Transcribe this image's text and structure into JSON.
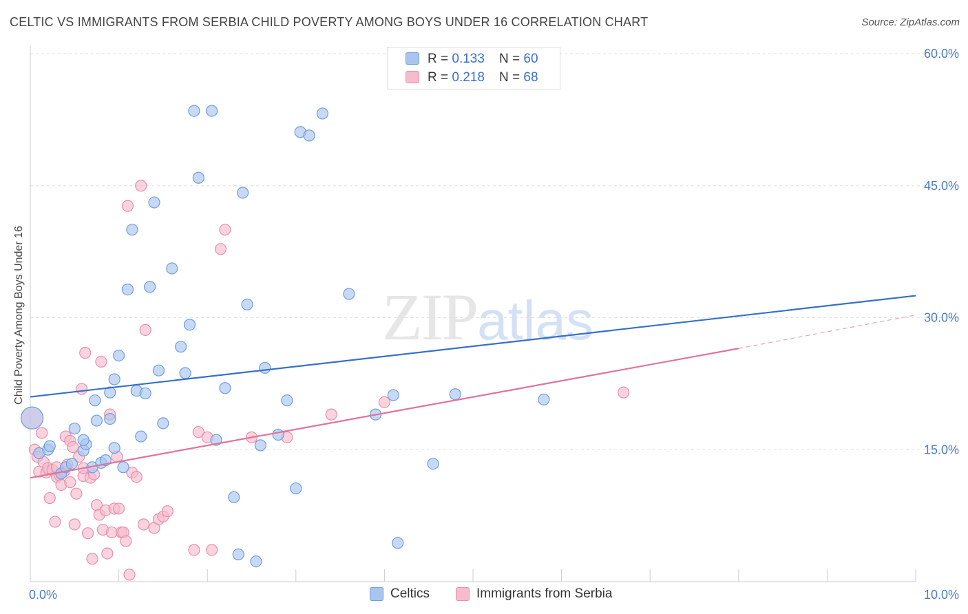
{
  "title": "CELTIC VS IMMIGRANTS FROM SERBIA CHILD POVERTY AMONG BOYS UNDER 16 CORRELATION CHART",
  "source": "Source: ZipAtlas.com",
  "watermark": {
    "zip": "ZIP",
    "atlas": "atlas"
  },
  "legend_top": [
    {
      "r_label": "R = ",
      "r_value": "0.133",
      "n_label": "N = ",
      "n_value": "60"
    },
    {
      "r_label": "R = ",
      "r_value": "0.218",
      "n_label": "N = ",
      "n_value": "68"
    }
  ],
  "bottom_legend": [
    {
      "label": "Celtics"
    },
    {
      "label": "Immigrants from Serbia"
    }
  ],
  "colors": {
    "celtics_fill": "#a9c5ee",
    "celtics_stroke": "#6f9fe0",
    "celtics_line": "#3570c9",
    "serbia_fill": "#f6bccd",
    "serbia_stroke": "#e98fab",
    "serbia_line": "#e0729b",
    "grid": "#e0e0e0",
    "tick_text": "#4a7cc9"
  },
  "chart_data": {
    "type": "scatter",
    "title": "CELTIC VS IMMIGRANTS FROM SERBIA CHILD POVERTY AMONG BOYS UNDER 16 CORRELATION CHART",
    "xlabel": "",
    "ylabel": "Child Poverty Among Boys Under 16",
    "xlim": [
      0,
      10
    ],
    "ylim": [
      0,
      60
    ],
    "x_tick_labels": [
      {
        "value": 0,
        "label": "0.0%"
      },
      {
        "value": 10,
        "label": "10.0%"
      }
    ],
    "y_tick_labels": [
      {
        "value": 15,
        "label": "15.0%"
      },
      {
        "value": 30,
        "label": "30.0%"
      },
      {
        "value": 45,
        "label": "45.0%"
      },
      {
        "value": 60,
        "label": "60.0%"
      }
    ],
    "legend_position": "top-center",
    "series": [
      {
        "name": "Celtics",
        "r": 0.133,
        "n": 60,
        "trend": {
          "x0": 0,
          "y0": 21.0,
          "x1": 10,
          "y1": 32.5
        },
        "points": [
          [
            0.02,
            18.6
          ],
          [
            0.1,
            14.6
          ],
          [
            0.2,
            15.0
          ],
          [
            0.22,
            15.4
          ],
          [
            0.35,
            12.3
          ],
          [
            0.4,
            13.0
          ],
          [
            0.47,
            13.4
          ],
          [
            0.6,
            14.9
          ],
          [
            0.63,
            15.6
          ],
          [
            0.7,
            13.0
          ],
          [
            0.73,
            20.6
          ],
          [
            0.5,
            17.4
          ],
          [
            0.6,
            16.1
          ],
          [
            0.9,
            18.5
          ],
          [
            0.75,
            18.3
          ],
          [
            0.8,
            13.5
          ],
          [
            0.9,
            21.5
          ],
          [
            0.95,
            23.0
          ],
          [
            1.0,
            25.7
          ],
          [
            1.1,
            33.2
          ],
          [
            1.2,
            21.7
          ],
          [
            1.15,
            40.0
          ],
          [
            1.3,
            21.4
          ],
          [
            1.4,
            43.1
          ],
          [
            1.45,
            24.0
          ],
          [
            1.5,
            18.0
          ],
          [
            1.6,
            35.6
          ],
          [
            1.7,
            26.7
          ],
          [
            1.75,
            23.7
          ],
          [
            1.8,
            29.2
          ],
          [
            1.85,
            53.5
          ],
          [
            1.9,
            45.9
          ],
          [
            2.05,
            53.5
          ],
          [
            2.2,
            22.0
          ],
          [
            2.3,
            9.6
          ],
          [
            2.35,
            3.1
          ],
          [
            2.45,
            31.5
          ],
          [
            2.4,
            44.2
          ],
          [
            2.55,
            2.3
          ],
          [
            2.6,
            15.5
          ],
          [
            2.65,
            24.3
          ],
          [
            2.8,
            16.7
          ],
          [
            2.9,
            20.6
          ],
          [
            3.0,
            10.6
          ],
          [
            3.05,
            51.1
          ],
          [
            3.15,
            50.7
          ],
          [
            3.3,
            53.2
          ],
          [
            3.6,
            32.7
          ],
          [
            3.9,
            19.0
          ],
          [
            4.1,
            21.2
          ],
          [
            4.15,
            4.4
          ],
          [
            4.55,
            13.4
          ],
          [
            4.8,
            21.3
          ],
          [
            5.8,
            20.7
          ],
          [
            1.25,
            16.5
          ],
          [
            1.35,
            33.5
          ],
          [
            0.85,
            13.8
          ],
          [
            1.05,
            13.0
          ],
          [
            2.1,
            16.1
          ],
          [
            0.95,
            15.2
          ]
        ]
      },
      {
        "name": "Immigrants from Serbia",
        "r": 0.218,
        "n": 68,
        "trend": {
          "x0": 0,
          "y0": 11.8,
          "x1": 8.0,
          "y1": 26.5,
          "dash_x1": 10,
          "dash_y1": 30.3
        },
        "points": [
          [
            0.02,
            18.6
          ],
          [
            0.05,
            15.0
          ],
          [
            0.08,
            14.2
          ],
          [
            0.1,
            12.5
          ],
          [
            0.13,
            16.9
          ],
          [
            0.15,
            13.6
          ],
          [
            0.18,
            12.4
          ],
          [
            0.2,
            12.9
          ],
          [
            0.22,
            9.5
          ],
          [
            0.25,
            12.7
          ],
          [
            0.28,
            6.8
          ],
          [
            0.3,
            11.9
          ],
          [
            0.33,
            12.1
          ],
          [
            0.35,
            11.0
          ],
          [
            0.38,
            12.5
          ],
          [
            0.4,
            16.5
          ],
          [
            0.42,
            13.3
          ],
          [
            0.45,
            16.0
          ],
          [
            0.48,
            15.3
          ],
          [
            0.5,
            6.5
          ],
          [
            0.52,
            10.0
          ],
          [
            0.55,
            14.2
          ],
          [
            0.58,
            21.9
          ],
          [
            0.6,
            12.0
          ],
          [
            0.62,
            26.0
          ],
          [
            0.65,
            5.5
          ],
          [
            0.68,
            11.8
          ],
          [
            0.7,
            2.6
          ],
          [
            0.72,
            12.2
          ],
          [
            0.75,
            8.7
          ],
          [
            0.78,
            7.6
          ],
          [
            0.8,
            25.0
          ],
          [
            0.82,
            5.9
          ],
          [
            0.85,
            8.1
          ],
          [
            0.87,
            3.2
          ],
          [
            0.9,
            19.0
          ],
          [
            0.92,
            5.6
          ],
          [
            0.95,
            8.3
          ],
          [
            0.98,
            14.2
          ],
          [
            1.0,
            8.3
          ],
          [
            1.03,
            5.6
          ],
          [
            1.05,
            5.6
          ],
          [
            1.08,
            4.6
          ],
          [
            1.1,
            42.7
          ],
          [
            1.12,
            0.8
          ],
          [
            1.15,
            12.4
          ],
          [
            1.2,
            11.9
          ],
          [
            1.25,
            45.0
          ],
          [
            1.28,
            6.5
          ],
          [
            1.3,
            28.6
          ],
          [
            1.4,
            6.1
          ],
          [
            1.45,
            7.1
          ],
          [
            1.5,
            7.4
          ],
          [
            1.55,
            8.0
          ],
          [
            1.85,
            3.6
          ],
          [
            1.9,
            17.0
          ],
          [
            2.0,
            16.4
          ],
          [
            2.05,
            3.6
          ],
          [
            2.15,
            37.8
          ],
          [
            2.2,
            40.0
          ],
          [
            2.5,
            16.4
          ],
          [
            2.9,
            16.4
          ],
          [
            3.4,
            19.0
          ],
          [
            4.0,
            20.4
          ],
          [
            6.7,
            21.5
          ],
          [
            0.45,
            11.3
          ],
          [
            0.3,
            13.0
          ],
          [
            0.6,
            12.9
          ]
        ]
      }
    ]
  }
}
